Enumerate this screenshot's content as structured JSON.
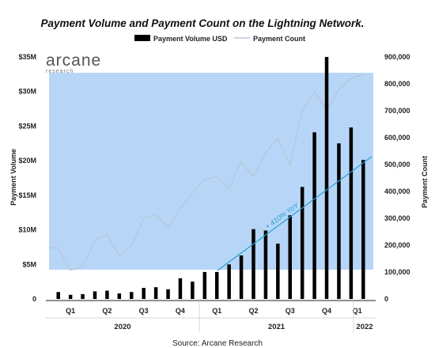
{
  "chart_data": {
    "type": "bar",
    "title": "Payment Volume and Payment Count on the Lightning Network.",
    "legend": [
      "Payment Volume USD",
      "Payment Count"
    ],
    "legend_position": "top-center",
    "ylabel_left": "Payment Volume",
    "ylabel_right": "Payment Count",
    "ylim_left": [
      0,
      35
    ],
    "ylim_right": [
      0,
      900000
    ],
    "left_ticks": [
      "0",
      "$5M",
      "$10M",
      "$15M",
      "$20M",
      "$25M",
      "$30M",
      "$35M"
    ],
    "right_ticks": [
      "0",
      "100,000",
      "200,000",
      "300,000",
      "400,000",
      "500,000",
      "600,000",
      "700,000",
      "800,000",
      "900,000"
    ],
    "quarters": [
      "Q1",
      "Q2",
      "Q3",
      "Q4",
      "Q1",
      "Q2",
      "Q3",
      "Q4",
      "Q1"
    ],
    "years": [
      "2020",
      "2021",
      "2022"
    ],
    "series": [
      {
        "name": "Payment Volume USD",
        "type": "bar",
        "color": "#000000",
        "values_musd": [
          1.0,
          0.6,
          0.7,
          1.1,
          1.2,
          0.8,
          1.0,
          1.6,
          1.7,
          1.4,
          3.0,
          2.5,
          3.9,
          3.9,
          5.0,
          6.3,
          10.1,
          9.9,
          8.0,
          12.1,
          16.2,
          24.1,
          35.0,
          22.5,
          24.8,
          20.1
        ]
      },
      {
        "name": "Payment Count",
        "type": "line",
        "color": "#b8c8dc",
        "values": [
          190000,
          108000,
          120000,
          220000,
          240000,
          160000,
          200000,
          300000,
          315000,
          265000,
          338000,
          395000,
          445000,
          455000,
          410000,
          510000,
          455000,
          545000,
          598000,
          497000,
          704000,
          771000,
          700000,
          780000,
          820000,
          836000
        ]
      }
    ],
    "annotations": [
      "+ 410% YoY"
    ],
    "colors": {
      "shade": "#b7d6f7",
      "trend": "#2a9fd6",
      "bars": "#000000",
      "count_line": "#b8c8dc"
    }
  },
  "brand": {
    "name": "arcane",
    "sub": "research"
  },
  "source": "Source: Arcane Research"
}
